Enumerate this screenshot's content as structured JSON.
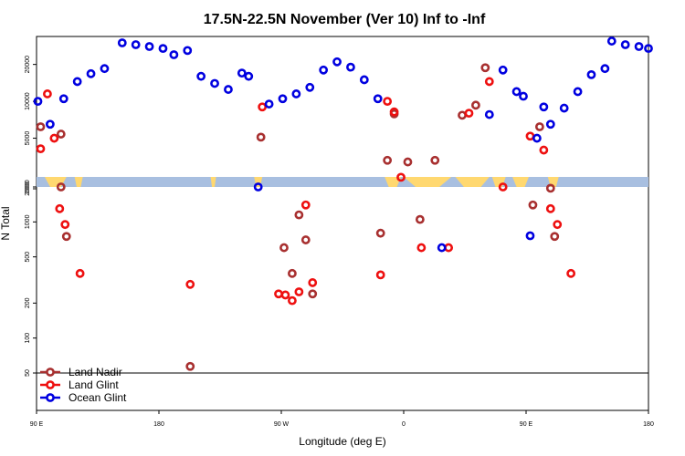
{
  "chart_data": {
    "type": "scatter",
    "title": "17.5N-22.5N November (Ver 10)   Inf to -Inf",
    "xlabel": "Longitude (deg E)",
    "ylabel": "N Total",
    "x_ticks": [
      "90 E",
      "180",
      "90 W",
      "0",
      "90 E",
      "180"
    ],
    "y_ticks_upper": [
      "2000",
      "5000",
      "10000",
      "20000"
    ],
    "y_ticks_lower": [
      "50",
      "100",
      "200",
      "500",
      "1000",
      "2000"
    ],
    "x_range_deg": [
      0,
      450
    ],
    "map_strip": {
      "land_color": "#ffd870",
      "ocean_color": "#a8bfe0"
    },
    "legend": [
      {
        "name": "Land Nadir",
        "color": "#a83030"
      },
      {
        "name": "Land Glint",
        "color": "#ee1010"
      },
      {
        "name": "Ocean Glint",
        "color": "#0000e0"
      }
    ],
    "series": [
      {
        "name": "Land Nadir",
        "color": "#a83030",
        "points": [
          [
            3,
            6200
          ],
          [
            18,
            5400
          ],
          [
            18,
            2000
          ],
          [
            22,
            750
          ],
          [
            113,
            57
          ],
          [
            165,
            5100
          ],
          [
            182,
            600
          ],
          [
            188,
            360
          ],
          [
            193,
            1150
          ],
          [
            198,
            700
          ],
          [
            203,
            240
          ],
          [
            253,
            800
          ],
          [
            258,
            3300
          ],
          [
            263,
            7900
          ],
          [
            273,
            3200
          ],
          [
            282,
            1050
          ],
          [
            293,
            3300
          ],
          [
            313,
            7700
          ],
          [
            323,
            9300
          ],
          [
            330,
            18800
          ],
          [
            365,
            1400
          ],
          [
            370,
            6200
          ],
          [
            378,
            1950
          ],
          [
            381,
            750
          ]
        ]
      },
      {
        "name": "Land Glint",
        "color": "#ee1010",
        "points": [
          [
            3,
            4100
          ],
          [
            8,
            11500
          ],
          [
            13,
            5000
          ],
          [
            17,
            1300
          ],
          [
            21,
            950
          ],
          [
            32,
            360
          ],
          [
            113,
            290
          ],
          [
            166,
            9000
          ],
          [
            178,
            240
          ],
          [
            183,
            235
          ],
          [
            188,
            210
          ],
          [
            193,
            250
          ],
          [
            198,
            1400
          ],
          [
            203,
            300
          ],
          [
            253,
            350
          ],
          [
            258,
            10000
          ],
          [
            263,
            8200
          ],
          [
            268,
            2400
          ],
          [
            283,
            600
          ],
          [
            303,
            600
          ],
          [
            318,
            8000
          ],
          [
            333,
            14500
          ],
          [
            343,
            2000
          ],
          [
            363,
            5200
          ],
          [
            373,
            4000
          ],
          [
            378,
            1300
          ],
          [
            383,
            950
          ],
          [
            393,
            360
          ]
        ]
      },
      {
        "name": "Ocean Glint",
        "color": "#0000e0",
        "points": [
          [
            1,
            10000
          ],
          [
            10,
            6500
          ],
          [
            20,
            10500
          ],
          [
            30,
            14500
          ],
          [
            40,
            16800
          ],
          [
            50,
            18500
          ],
          [
            63,
            30000
          ],
          [
            73,
            29000
          ],
          [
            83,
            28000
          ],
          [
            93,
            27000
          ],
          [
            101,
            24000
          ],
          [
            111,
            26000
          ],
          [
            121,
            16000
          ],
          [
            131,
            14000
          ],
          [
            141,
            12500
          ],
          [
            151,
            17000
          ],
          [
            156,
            16000
          ],
          [
            163,
            2000
          ],
          [
            171,
            9500
          ],
          [
            181,
            10500
          ],
          [
            191,
            11500
          ],
          [
            201,
            13000
          ],
          [
            211,
            18000
          ],
          [
            221,
            21000
          ],
          [
            231,
            19000
          ],
          [
            241,
            15000
          ],
          [
            251,
            10500
          ],
          [
            298,
            600
          ],
          [
            333,
            7800
          ],
          [
            343,
            18000
          ],
          [
            353,
            12000
          ],
          [
            358,
            11000
          ],
          [
            363,
            760
          ],
          [
            368,
            5000
          ],
          [
            373,
            9000
          ],
          [
            378,
            6500
          ],
          [
            388,
            8800
          ],
          [
            398,
            12000
          ],
          [
            408,
            16500
          ],
          [
            418,
            18500
          ],
          [
            423,
            31000
          ],
          [
            433,
            29000
          ],
          [
            443,
            28000
          ],
          [
            450,
            27000
          ]
        ]
      }
    ]
  }
}
